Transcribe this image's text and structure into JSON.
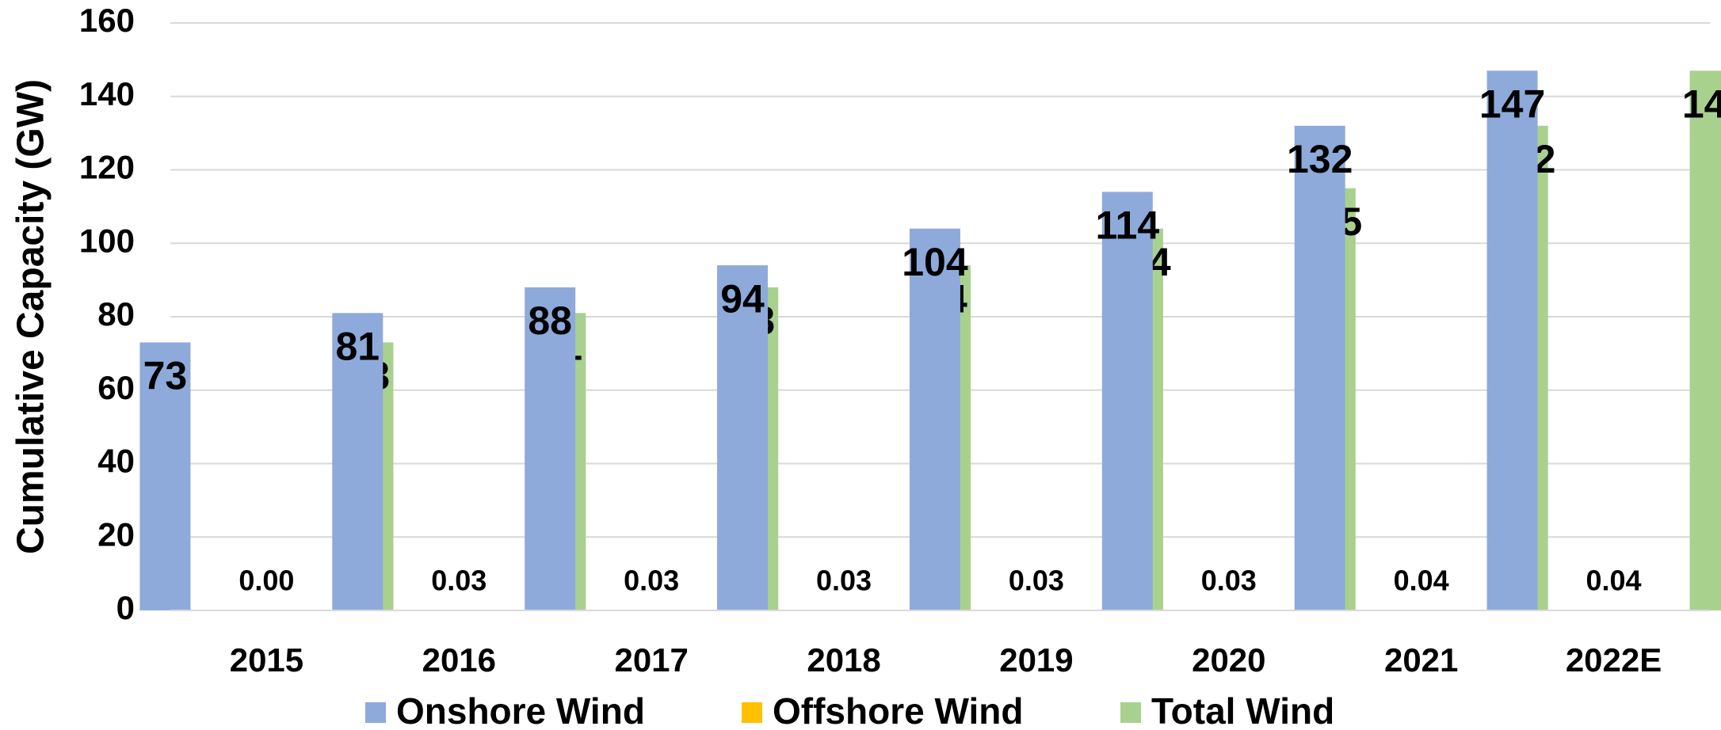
{
  "chart_data": {
    "type": "bar",
    "y_axis_label": "Cumulative Capacity (GW)",
    "categories": [
      "2015",
      "2016",
      "2017",
      "2018",
      "2019",
      "2020",
      "2021",
      "2022E"
    ],
    "series": [
      {
        "name": "Onshore Wind",
        "color": "#8eaadb",
        "values": [
          73,
          81,
          88,
          94,
          104,
          114,
          132,
          147
        ]
      },
      {
        "name": "Offshore Wind",
        "color": "#ffc000",
        "values": [
          0,
          0.03,
          0.03,
          0.03,
          0.03,
          0.03,
          0.04,
          0.04
        ],
        "value_labels": [
          "0.00",
          "0.03",
          "0.03",
          "0.03",
          "0.03",
          "0.03",
          "0.04",
          "0.04"
        ]
      },
      {
        "name": "Total Wind",
        "color": "#a9d18e",
        "values": [
          73,
          81,
          88,
          94,
          104,
          115,
          132,
          147
        ]
      }
    ],
    "ylim": [
      0,
      160
    ],
    "yticks": [
      0,
      20,
      40,
      60,
      80,
      100,
      120,
      140,
      160
    ],
    "grid": true,
    "legend": "bottom"
  }
}
